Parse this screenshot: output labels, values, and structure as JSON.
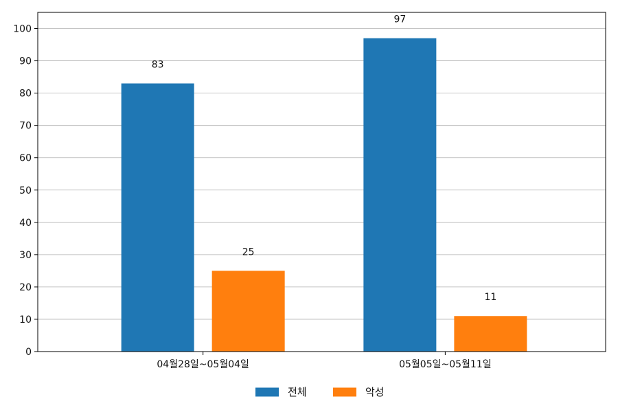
{
  "chart_data": {
    "type": "bar",
    "categories": [
      "04월28일~05월04일",
      "05월05일~05월11일"
    ],
    "series": [
      {
        "name": "전체",
        "values": [
          83,
          97
        ],
        "color": "#1f77b4"
      },
      {
        "name": "악성",
        "values": [
          25,
          11
        ],
        "color": "#ff7f0e"
      }
    ],
    "title": "",
    "xlabel": "",
    "ylabel": "",
    "ylim": [
      0,
      105
    ],
    "yticks": [
      0,
      10,
      20,
      30,
      40,
      50,
      60,
      70,
      80,
      90,
      100
    ],
    "grid": "y-major",
    "legend": "bottom-center",
    "data_labels": true
  }
}
